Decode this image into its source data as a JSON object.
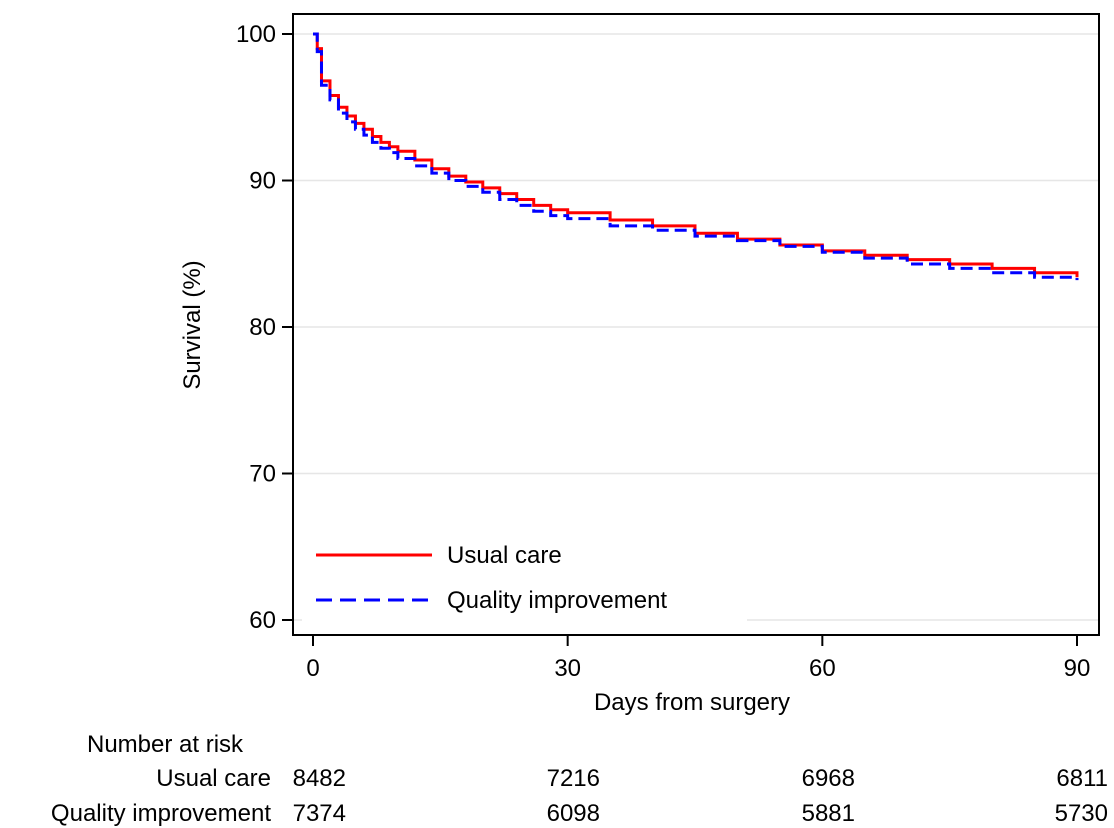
{
  "chart_data": {
    "type": "line",
    "step": true,
    "xlabel": "Days from surgery",
    "ylabel": "Survival (%)",
    "xlim": [
      0,
      90
    ],
    "ylim": [
      60,
      100
    ],
    "xticks": [
      0,
      30,
      60,
      90
    ],
    "yticks": [
      60,
      70,
      80,
      90,
      100
    ],
    "grid": true,
    "legend_position": "bottom-left",
    "series": [
      {
        "name": "Usual care",
        "color": "#ff0000",
        "dash": "solid",
        "x": [
          0,
          0.5,
          1,
          2,
          3,
          4,
          5,
          6,
          7,
          8,
          9,
          10,
          12,
          14,
          16,
          18,
          20,
          22,
          24,
          26,
          28,
          30,
          35,
          40,
          45,
          50,
          55,
          60,
          65,
          70,
          75,
          80,
          85,
          90
        ],
        "y": [
          100,
          99,
          96.8,
          95.8,
          95.0,
          94.4,
          93.9,
          93.5,
          93.0,
          92.6,
          92.3,
          92.0,
          91.4,
          90.8,
          90.3,
          89.9,
          89.5,
          89.1,
          88.7,
          88.3,
          88.0,
          87.8,
          87.3,
          86.9,
          86.4,
          86.0,
          85.6,
          85.2,
          84.9,
          84.6,
          84.3,
          84.0,
          83.7,
          83.4
        ]
      },
      {
        "name": "Quality improvement",
        "color": "#0000ff",
        "dash": "dashed",
        "x": [
          0,
          0.5,
          1,
          2,
          3,
          4,
          5,
          6,
          7,
          8,
          9,
          10,
          12,
          14,
          16,
          18,
          20,
          22,
          24,
          26,
          28,
          30,
          35,
          40,
          45,
          50,
          55,
          60,
          65,
          70,
          75,
          80,
          85,
          90
        ],
        "y": [
          100,
          98.8,
          96.5,
          95.5,
          94.6,
          94.0,
          93.5,
          93.1,
          92.6,
          92.2,
          91.9,
          91.5,
          91.0,
          90.5,
          90.0,
          89.6,
          89.2,
          88.7,
          88.3,
          87.9,
          87.6,
          87.4,
          86.9,
          86.6,
          86.2,
          85.9,
          85.5,
          85.1,
          84.7,
          84.3,
          84.0,
          83.7,
          83.4,
          83.2
        ]
      }
    ],
    "risk_table": {
      "title": "Number at risk",
      "timepoints": [
        0,
        30,
        60,
        90
      ],
      "rows": [
        {
          "label": "Usual care",
          "values": [
            "8482",
            "7216",
            "6968",
            "6811"
          ]
        },
        {
          "label": "Quality improvement",
          "values": [
            "7374",
            "6098",
            "5881",
            "5730"
          ]
        }
      ]
    }
  }
}
